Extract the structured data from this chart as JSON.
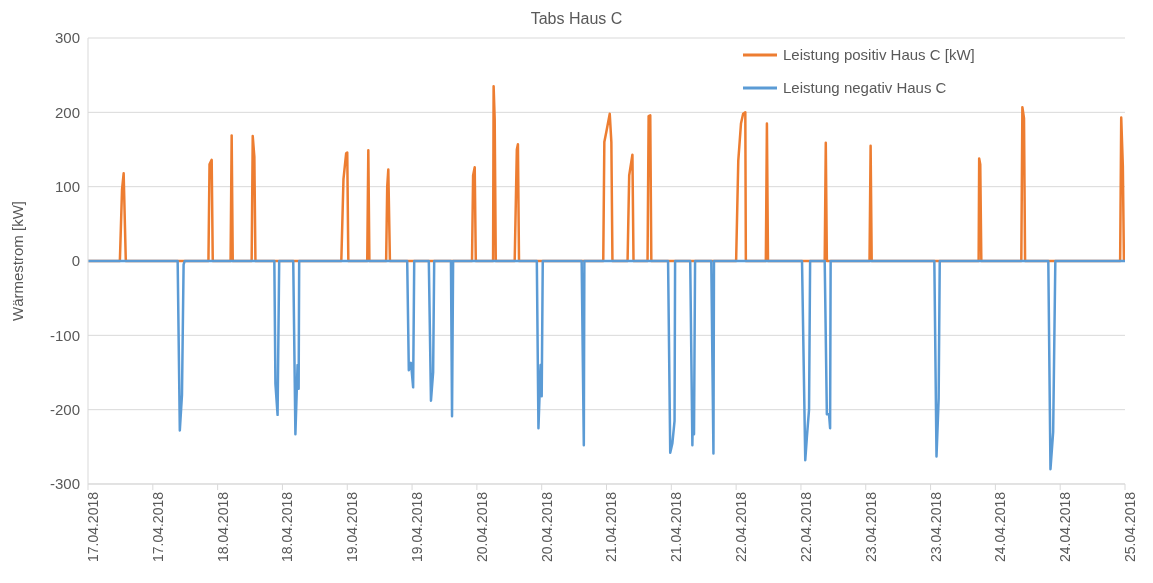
{
  "chart_data": {
    "type": "line",
    "title": "Tabs Haus C",
    "ylabel": "Wärmestrom [kW]",
    "xlim": [
      "2018-04-17T00:00",
      "2018-04-25T00:00"
    ],
    "xticks": [
      {
        "value": "2018-04-17T00:00",
        "label": "17.04.2018"
      },
      {
        "value": "2018-04-17T12:00",
        "label": "17.04.2018"
      },
      {
        "value": "2018-04-18T00:00",
        "label": "18.04.2018"
      },
      {
        "value": "2018-04-18T12:00",
        "label": "18.04.2018"
      },
      {
        "value": "2018-04-19T00:00",
        "label": "19.04.2018"
      },
      {
        "value": "2018-04-19T12:00",
        "label": "19.04.2018"
      },
      {
        "value": "2018-04-20T00:00",
        "label": "20.04.2018"
      },
      {
        "value": "2018-04-20T12:00",
        "label": "20.04.2018"
      },
      {
        "value": "2018-04-21T00:00",
        "label": "21.04.2018"
      },
      {
        "value": "2018-04-21T12:00",
        "label": "21.04.2018"
      },
      {
        "value": "2018-04-22T00:00",
        "label": "22.04.2018"
      },
      {
        "value": "2018-04-22T12:00",
        "label": "22.04.2018"
      },
      {
        "value": "2018-04-23T00:00",
        "label": "23.04.2018"
      },
      {
        "value": "2018-04-23T12:00",
        "label": "23.04.2018"
      },
      {
        "value": "2018-04-24T00:00",
        "label": "24.04.2018"
      },
      {
        "value": "2018-04-24T12:00",
        "label": "24.04.2018"
      },
      {
        "value": "2018-04-25T00:00",
        "label": "25.04.2018"
      }
    ],
    "ylim": [
      -300,
      300
    ],
    "yticks": [
      -300,
      -200,
      -100,
      0,
      100,
      200,
      300
    ],
    "grid": "y",
    "legend": "top right",
    "marker": "none",
    "line_style": "solid",
    "series": [
      {
        "name": "Leistung positiv Haus C [kW]",
        "color": "#ed7d31",
        "x": [
          "2018-04-17T00:00",
          "2018-04-17T05:54",
          "2018-04-17T06:18",
          "2018-04-17T06:36",
          "2018-04-17T07:00",
          "2018-04-17T22:18",
          "2018-04-17T22:30",
          "2018-04-17T22:54",
          "2018-04-17T23:06",
          "2018-04-18T02:24",
          "2018-04-18T02:36",
          "2018-04-18T02:48",
          "2018-04-18T06:18",
          "2018-04-18T06:30",
          "2018-04-18T06:48",
          "2018-04-18T07:00",
          "2018-04-18T22:54",
          "2018-04-18T23:18",
          "2018-04-18T23:48",
          "2018-04-19T00:00",
          "2018-04-19T00:12",
          "2018-04-19T03:42",
          "2018-04-19T03:54",
          "2018-04-19T04:06",
          "2018-04-19T07:12",
          "2018-04-19T07:24",
          "2018-04-19T07:36",
          "2018-04-19T07:54",
          "2018-04-19T23:06",
          "2018-04-19T23:18",
          "2018-04-19T23:36",
          "2018-04-19T23:48",
          "2018-04-20T03:00",
          "2018-04-20T03:06",
          "2018-04-20T03:18",
          "2018-04-20T03:30",
          "2018-04-20T07:00",
          "2018-04-20T07:24",
          "2018-04-20T07:36",
          "2018-04-20T07:48",
          "2018-04-20T23:24",
          "2018-04-20T23:36",
          "2018-04-21T00:00",
          "2018-04-21T00:36",
          "2018-04-21T00:54",
          "2018-04-21T01:06",
          "2018-04-21T03:54",
          "2018-04-21T04:12",
          "2018-04-21T04:48",
          "2018-04-21T05:00",
          "2018-04-21T07:36",
          "2018-04-21T07:48",
          "2018-04-21T08:06",
          "2018-04-21T08:18",
          "2018-04-22T00:00",
          "2018-04-22T00:24",
          "2018-04-22T00:54",
          "2018-04-22T01:18",
          "2018-04-22T01:42",
          "2018-04-22T01:48",
          "2018-04-22T05:30",
          "2018-04-22T05:42",
          "2018-04-22T05:54",
          "2018-04-22T16:24",
          "2018-04-22T16:36",
          "2018-04-22T16:48",
          "2018-04-23T00:42",
          "2018-04-23T00:54",
          "2018-04-23T01:06",
          "2018-04-23T20:54",
          "2018-04-23T21:00",
          "2018-04-23T21:12",
          "2018-04-23T21:24",
          "2018-04-24T04:48",
          "2018-04-24T05:00",
          "2018-04-24T05:18",
          "2018-04-24T05:30",
          "2018-04-24T23:06",
          "2018-04-24T23:18",
          "2018-04-24T23:36",
          "2018-04-24T23:48"
        ],
        "values": [
          0,
          0,
          96,
          118,
          0,
          0,
          130,
          136,
          0,
          0,
          169,
          0,
          0,
          168,
          140,
          0,
          0,
          110,
          145,
          146,
          0,
          0,
          149,
          0,
          0,
          100,
          123,
          0,
          0,
          115,
          126,
          0,
          0,
          235,
          190,
          0,
          0,
          150,
          157,
          0,
          0,
          160,
          175,
          198,
          160,
          0,
          0,
          115,
          143,
          0,
          0,
          195,
          196,
          0,
          0,
          135,
          185,
          198,
          200,
          0,
          0,
          185,
          0,
          0,
          159,
          0,
          0,
          155,
          0,
          0,
          138,
          130,
          0,
          0,
          207,
          192,
          0,
          0,
          193,
          128,
          0
        ]
      },
      {
        "name": "Leistung negativ Haus C",
        "color": "#5b9bd5",
        "x": [
          "2018-04-17T00:00",
          "2018-04-17T16:36",
          "2018-04-17T17:00",
          "2018-04-17T17:24",
          "2018-04-17T17:42",
          "2018-04-17T17:54",
          "2018-04-18T10:30",
          "2018-04-18T10:42",
          "2018-04-18T11:06",
          "2018-04-18T11:24",
          "2018-04-18T14:00",
          "2018-04-18T14:24",
          "2018-04-18T14:48",
          "2018-04-18T15:00",
          "2018-04-18T15:06",
          "2018-04-19T11:06",
          "2018-04-19T11:24",
          "2018-04-19T11:48",
          "2018-04-19T12:12",
          "2018-04-19T12:24",
          "2018-04-19T15:06",
          "2018-04-19T15:30",
          "2018-04-19T15:54",
          "2018-04-19T16:06",
          "2018-04-19T19:12",
          "2018-04-19T19:24",
          "2018-04-19T19:36",
          "2018-04-20T11:06",
          "2018-04-20T11:24",
          "2018-04-20T11:48",
          "2018-04-20T12:00",
          "2018-04-20T12:12",
          "2018-04-20T19:24",
          "2018-04-20T19:48",
          "2018-04-20T19:54",
          "2018-04-21T11:24",
          "2018-04-21T11:48",
          "2018-04-21T12:12",
          "2018-04-21T12:36",
          "2018-04-21T12:42",
          "2018-04-21T15:30",
          "2018-04-21T15:54",
          "2018-04-21T16:00",
          "2018-04-21T16:12",
          "2018-04-21T16:24",
          "2018-04-21T19:24",
          "2018-04-21T19:48",
          "2018-04-21T19:54",
          "2018-04-22T12:12",
          "2018-04-22T12:48",
          "2018-04-22T13:06",
          "2018-04-22T13:30",
          "2018-04-22T13:42",
          "2018-04-22T16:24",
          "2018-04-22T16:48",
          "2018-04-22T17:12",
          "2018-04-22T17:24",
          "2018-04-22T17:30",
          "2018-04-23T12:42",
          "2018-04-23T13:06",
          "2018-04-23T13:30",
          "2018-04-23T13:42",
          "2018-04-24T09:48",
          "2018-04-24T10:12",
          "2018-04-24T10:42",
          "2018-04-24T11:06",
          "2018-04-25T00:00"
        ],
        "values": [
          0,
          0,
          -228,
          -180,
          -5,
          0,
          0,
          -165,
          -207,
          0,
          0,
          -233,
          -140,
          -172,
          0,
          0,
          -147,
          -137,
          -170,
          0,
          0,
          -188,
          -150,
          0,
          0,
          -209,
          0,
          0,
          -225,
          -140,
          -182,
          0,
          0,
          -248,
          0,
          0,
          -258,
          -245,
          -215,
          0,
          0,
          -248,
          -200,
          -233,
          0,
          0,
          -259,
          0,
          0,
          -268,
          -237,
          -200,
          0,
          0,
          -206,
          -206,
          -225,
          0,
          0,
          -263,
          -185,
          0,
          0,
          -280,
          -230,
          0,
          0
        ]
      }
    ]
  }
}
